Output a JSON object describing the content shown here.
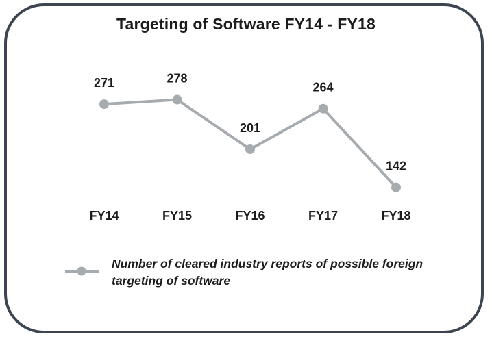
{
  "chart_data": {
    "type": "line",
    "title": "Targeting of Software FY14 - FY18",
    "categories": [
      "FY14",
      "FY15",
      "FY16",
      "FY17",
      "FY18"
    ],
    "series": [
      {
        "name": "Number of cleared industry reports of possible foreign targeting of software",
        "values": [
          271,
          278,
          201,
          264,
          142
        ]
      }
    ],
    "data_labels": [
      "271",
      "278",
      "201",
      "264",
      "142"
    ],
    "xlabel": "",
    "ylabel": "",
    "grid": false,
    "legend_position": "bottom",
    "line_color": "#a6abb0",
    "marker_color": "#a6abb0"
  }
}
